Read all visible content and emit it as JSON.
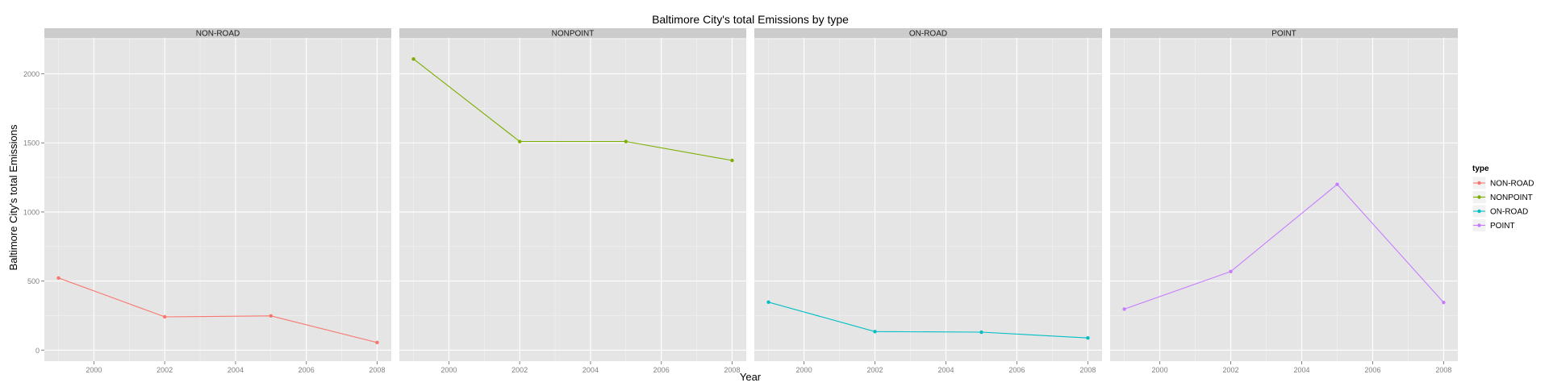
{
  "chart_data": {
    "type": "line",
    "title": "Baltimore City's total Emissions by type",
    "xlabel": "Year",
    "ylabel": "Baltimore City's total Emissions",
    "x": [
      1999,
      2002,
      2005,
      2008
    ],
    "xlim": [
      1998.6,
      2008.4
    ],
    "ylim": [
      -80,
      2260
    ],
    "x_ticks": [
      2000,
      2002,
      2004,
      2006,
      2008
    ],
    "y_ticks": [
      0,
      500,
      1000,
      1500,
      2000
    ],
    "facets": [
      "NON-ROAD",
      "NONPOINT",
      "ON-ROAD",
      "POINT"
    ],
    "grid": true,
    "legend": {
      "title": "type",
      "position": "right"
    },
    "series": [
      {
        "name": "NON-ROAD",
        "color": "#F8766D",
        "values": [
          522,
          241,
          248,
          55
        ]
      },
      {
        "name": "NONPOINT",
        "color": "#7CAE00",
        "values": [
          2107,
          1510,
          1510,
          1373
        ]
      },
      {
        "name": "ON-ROAD",
        "color": "#00BFC4",
        "values": [
          347,
          134,
          130,
          88
        ]
      },
      {
        "name": "POINT",
        "color": "#C77CFF",
        "values": [
          297,
          569,
          1200,
          345
        ]
      }
    ]
  }
}
